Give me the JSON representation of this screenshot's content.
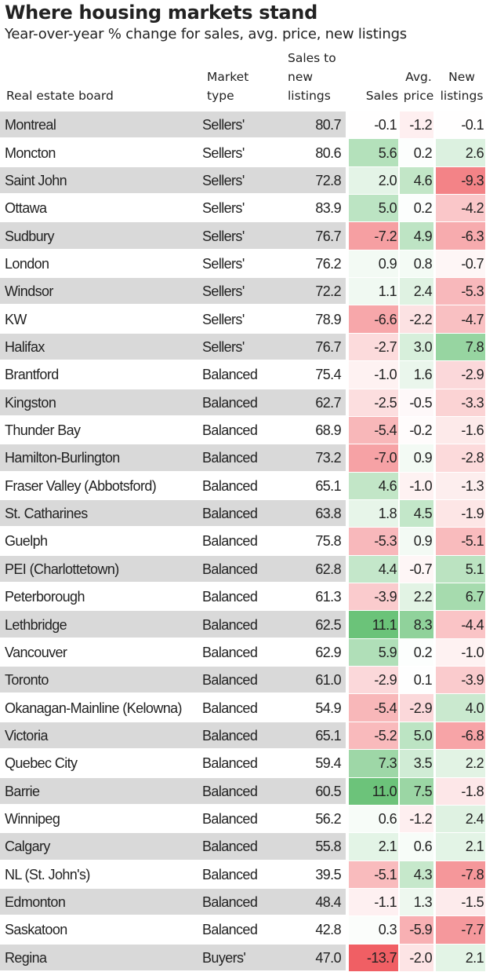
{
  "header": {
    "title": "Where housing markets stand",
    "subtitle": "Year-over-year % change for sales, avg. price, new listings"
  },
  "table": {
    "columns": [
      "Real estate board",
      "Market type",
      "Sales to new listings",
      "Sales",
      "Avg. price",
      "New listings"
    ],
    "rows": [
      [
        "Montreal",
        "Sellers'",
        "80.7",
        "-0.1",
        "-1.2",
        "-0.1"
      ],
      [
        "Moncton",
        "Sellers'",
        "80.6",
        "5.6",
        "0.2",
        "2.6"
      ],
      [
        "Saint John",
        "Sellers'",
        "72.8",
        "2.0",
        "4.6",
        "-9.3"
      ],
      [
        "Ottawa",
        "Sellers'",
        "83.9",
        "5.0",
        "0.2",
        "-4.2"
      ],
      [
        "Sudbury",
        "Sellers'",
        "76.7",
        "-7.2",
        "4.9",
        "-6.3"
      ],
      [
        "London",
        "Sellers'",
        "76.2",
        "0.9",
        "0.8",
        "-0.7"
      ],
      [
        "Windsor",
        "Sellers'",
        "72.2",
        "1.1",
        "2.4",
        "-5.3"
      ],
      [
        "KW",
        "Sellers'",
        "78.9",
        "-6.6",
        "-2.2",
        "-4.7"
      ],
      [
        "Halifax",
        "Sellers'",
        "76.7",
        "-2.7",
        "3.0",
        "7.8"
      ],
      [
        "Brantford",
        "Balanced",
        "75.4",
        "-1.0",
        "1.6",
        "-2.9"
      ],
      [
        "Kingston",
        "Balanced",
        "62.7",
        "-2.5",
        "-0.5",
        "-3.3"
      ],
      [
        "Thunder Bay",
        "Balanced",
        "68.9",
        "-5.4",
        "-0.2",
        "-1.6"
      ],
      [
        "Hamilton-Burlington",
        "Balanced",
        "73.2",
        "-7.0",
        "0.9",
        "-2.8"
      ],
      [
        "Fraser Valley (Abbotsford)",
        "Balanced",
        "65.1",
        "4.6",
        "-1.0",
        "-1.3"
      ],
      [
        "St. Catharines",
        "Balanced",
        "63.8",
        "1.8",
        "4.5",
        "-1.9"
      ],
      [
        "Guelph",
        "Balanced",
        "75.8",
        "-5.3",
        "0.9",
        "-5.1"
      ],
      [
        "PEI (Charlottetown)",
        "Balanced",
        "62.8",
        "4.4",
        "-0.7",
        "5.1"
      ],
      [
        "Peterborough",
        "Balanced",
        "61.3",
        "-3.9",
        "2.2",
        "6.7"
      ],
      [
        "Lethbridge",
        "Balanced",
        "62.5",
        "11.1",
        "8.3",
        "-4.4"
      ],
      [
        "Vancouver",
        "Balanced",
        "62.9",
        "5.9",
        "0.2",
        "-1.0"
      ],
      [
        "Toronto",
        "Balanced",
        "61.0",
        "-2.9",
        "0.1",
        "-3.9"
      ],
      [
        "Okanagan-Mainline (Kelowna)",
        "Balanced",
        "54.9",
        "-5.4",
        "-2.9",
        "4.0"
      ],
      [
        "Victoria",
        "Balanced",
        "65.1",
        "-5.2",
        "5.0",
        "-6.8"
      ],
      [
        "Quebec City",
        "Balanced",
        "59.4",
        "7.3",
        "3.5",
        "2.2"
      ],
      [
        "Barrie",
        "Balanced",
        "60.5",
        "11.0",
        "7.5",
        "-1.8"
      ],
      [
        "Winnipeg",
        "Balanced",
        "56.2",
        "0.6",
        "-1.2",
        "2.4"
      ],
      [
        "Calgary",
        "Balanced",
        "55.8",
        "2.1",
        "0.6",
        "2.1"
      ],
      [
        "NL (St. John's)",
        "Balanced",
        "39.5",
        "-5.1",
        "4.3",
        "-7.8"
      ],
      [
        "Edmonton",
        "Balanced",
        "48.4",
        "-1.1",
        "1.3",
        "-1.5"
      ],
      [
        "Saskatoon",
        "Balanced",
        "42.8",
        "0.3",
        "-5.9",
        "-7.7"
      ],
      [
        "Regina",
        "Buyers'",
        "47.0",
        "-13.7",
        "-2.0",
        "2.1"
      ]
    ]
  }
}
